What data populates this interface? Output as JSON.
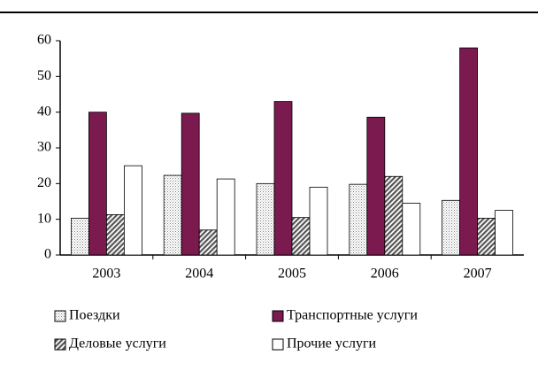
{
  "chart_data": {
    "type": "bar",
    "categories": [
      "2003",
      "2004",
      "2005",
      "2006",
      "2007"
    ],
    "series": [
      {
        "name": "Поездки",
        "color": "#e0e0e0",
        "pattern": "dots",
        "values": [
          10.3,
          22.3,
          20,
          19.8,
          15.3
        ]
      },
      {
        "name": "Транспортные услуги",
        "color": "#7a1a4e",
        "pattern": null,
        "values": [
          40,
          39.7,
          43,
          38.6,
          58
        ]
      },
      {
        "name": "Деловые услуги",
        "color": "#555555",
        "pattern": "hatch",
        "values": [
          11.3,
          7,
          10.5,
          22,
          10.3
        ]
      },
      {
        "name": "Прочие услуги",
        "color": "#ffffff",
        "pattern": null,
        "values": [
          25,
          21.3,
          19,
          14.5,
          12.5
        ]
      }
    ],
    "ylim": [
      0,
      60
    ],
    "yticks": [
      0,
      10,
      20,
      30,
      40,
      50,
      60
    ],
    "grid": false
  }
}
